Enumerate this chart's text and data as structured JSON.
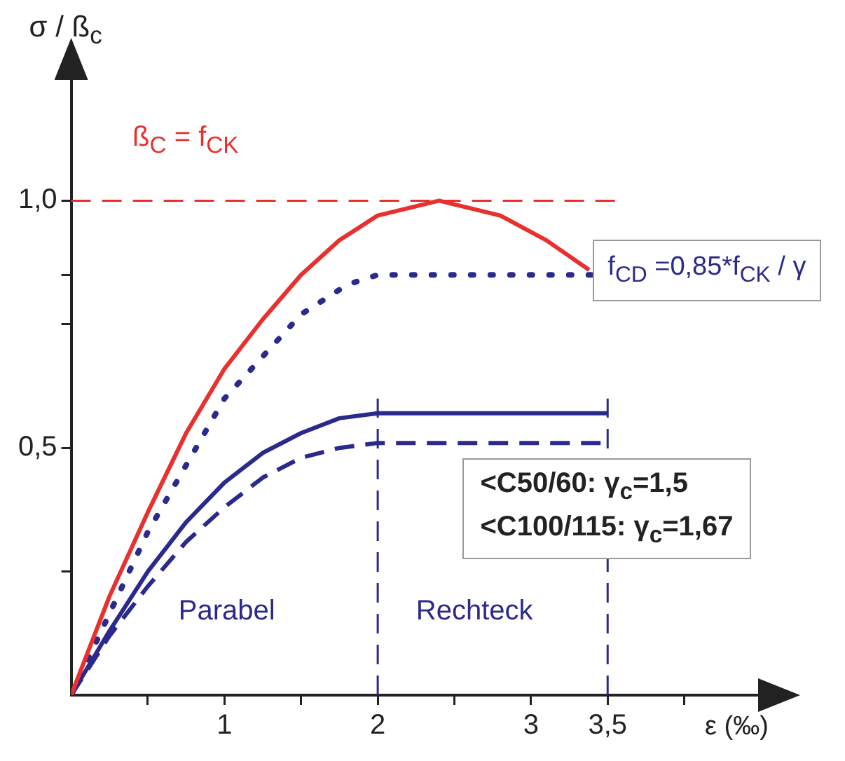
{
  "chart_data": {
    "type": "line",
    "xlabel": "ε (‰)",
    "ylabel": "σ / ß$_{c}$",
    "annotations": [
      "ß$_{C}$ = f$_{CK}$",
      "f$_{CD}$ =0,85*f$_{CK}$ / γ",
      "<C50/60: γ$_{c}$=1,5",
      "<C100/115: γ$_{c}$=1,67",
      "Parabel",
      "Rechteck"
    ],
    "series": [
      {
        "color": "#e8312f",
        "line_style": "solid",
        "x": [
          0,
          0.25,
          0.5,
          0.75,
          1,
          1.25,
          1.5,
          1.75,
          2,
          2.4,
          2.8,
          3.1,
          3.38
        ],
        "values": [
          0,
          0.2,
          0.37,
          0.53,
          0.66,
          0.76,
          0.85,
          0.92,
          0.97,
          1,
          0.97,
          0.92,
          0.86
        ]
      },
      {
        "color": "#2b2a8c",
        "line_style": "dotted",
        "x": [
          0,
          0.5,
          1,
          1.5,
          1.8,
          2,
          3.4
        ],
        "values": [
          0,
          0.33,
          0.6,
          0.77,
          0.83,
          0.85,
          0.85
        ]
      },
      {
        "color": "#2b2a8c",
        "line_style": "solid",
        "x": [
          0,
          0.25,
          0.5,
          0.75,
          1,
          1.25,
          1.5,
          1.75,
          2,
          3.5
        ],
        "values": [
          0,
          0.13,
          0.25,
          0.35,
          0.43,
          0.49,
          0.53,
          0.56,
          0.57,
          0.57
        ]
      },
      {
        "color": "#2b2a8c",
        "line_style": "dashed",
        "x": [
          0,
          0.25,
          0.5,
          0.75,
          1,
          1.25,
          1.5,
          1.75,
          2,
          3.5
        ],
        "values": [
          0,
          0.12,
          0.22,
          0.31,
          0.38,
          0.44,
          0.48,
          0.5,
          0.51,
          0.51
        ]
      }
    ],
    "ref_lines": [
      {
        "axis": "y",
        "value": 1,
        "color": "#e8312f",
        "line_style": "dashed"
      },
      {
        "axis": "x",
        "value": 2,
        "color": "#2b2a8c",
        "line_style": "dashed"
      },
      {
        "axis": "x",
        "value": 3.5,
        "color": "#2b2a8c",
        "line_style": "dashed"
      }
    ],
    "xlim": [
      0,
      4.5
    ],
    "ylim": [
      0,
      1.25
    ],
    "xticks": [
      {
        "value": 0.5,
        "label": null
      },
      1,
      {
        "value": 1.5,
        "label": null
      },
      2,
      {
        "value": 2.5,
        "label": null
      },
      3,
      {
        "value": 3.5,
        "label": "3,5"
      },
      {
        "value": 4,
        "label": null
      }
    ],
    "yticks": [
      {
        "value": 0.25,
        "label": null
      },
      {
        "value": 0.5,
        "label": "0,5"
      },
      {
        "value": 0.75,
        "label": null
      },
      {
        "value": 0.85,
        "label": null
      },
      {
        "value": 1,
        "label": "1,0"
      }
    ],
    "grid": false,
    "legend": false,
    "marker": "none"
  }
}
